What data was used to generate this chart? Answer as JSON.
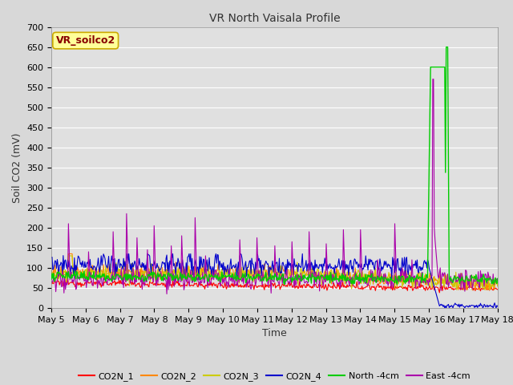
{
  "title": "VR North Vaisala Profile",
  "xlabel": "Time",
  "ylabel": "Soil CO2 (mV)",
  "ylim": [
    0,
    700
  ],
  "yticks": [
    0,
    50,
    100,
    150,
    200,
    250,
    300,
    350,
    400,
    450,
    500,
    550,
    600,
    650,
    700
  ],
  "bg_color": "#d8d8d8",
  "plot_bg_color": "#e0e0e0",
  "grid_color": "#ffffff",
  "annotation_text": "VR_soilco2",
  "annotation_bg": "#ffff99",
  "annotation_border": "#ccaa00",
  "annotation_text_color": "#880000",
  "series_colors": {
    "CO2N_1": "#ff0000",
    "CO2N_2": "#ff8800",
    "CO2N_3": "#cccc00",
    "CO2N_4": "#0000cc",
    "North_4cm": "#00cc00",
    "East_4cm": "#aa00aa"
  },
  "legend_labels": [
    "CO2N_1",
    "CO2N_2",
    "CO2N_3",
    "CO2N_4",
    "North -4cm",
    "East -4cm"
  ],
  "n_points": 600,
  "x_start": 5.0,
  "x_end": 18.0,
  "xtick_positions": [
    5,
    6,
    7,
    8,
    9,
    10,
    11,
    12,
    13,
    14,
    15,
    16,
    17,
    18
  ],
  "xtick_labels": [
    "May 5",
    "May 6",
    "May 7",
    "May 8",
    "May 9",
    "May 10",
    "May 11",
    "May 12",
    "May 13",
    "May 14",
    "May 15",
    "May 16",
    "May 17",
    "May 18"
  ],
  "title_fontsize": 10,
  "axis_fontsize": 9,
  "tick_fontsize": 8
}
